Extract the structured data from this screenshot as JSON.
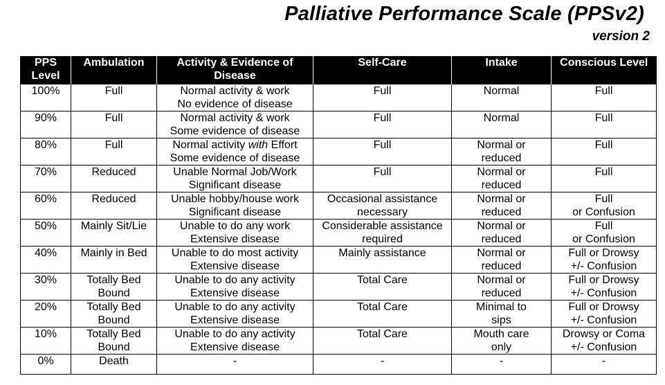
{
  "document": {
    "title": "Palliative Performance Scale (PPSv2)",
    "subtitle": "version 2"
  },
  "table": {
    "headers": [
      [
        "PPS",
        "Level"
      ],
      [
        "Ambulation"
      ],
      [
        "Activity & Evidence of",
        "Disease"
      ],
      [
        "Self-Care"
      ],
      [
        "Intake"
      ],
      [
        "Conscious Level"
      ]
    ],
    "rows": [
      {
        "level": "100%",
        "ambulation": [
          "Full"
        ],
        "activity": [
          "Normal activity & work",
          "No evidence of disease"
        ],
        "self_care": [
          "Full"
        ],
        "intake": [
          "Normal"
        ],
        "conscious": [
          "Full"
        ]
      },
      {
        "level": "90%",
        "ambulation": [
          "Full"
        ],
        "activity": [
          "Normal activity & work",
          "Some evidence of disease"
        ],
        "self_care": [
          "Full"
        ],
        "intake": [
          "Normal"
        ],
        "conscious": [
          "Full"
        ]
      },
      {
        "level": "80%",
        "ambulation": [
          "Full"
        ],
        "activity_parts": [
          "Normal activity ",
          "with",
          " Effort"
        ],
        "activity": [
          "",
          "Some evidence of disease"
        ],
        "self_care": [
          "Full"
        ],
        "intake": [
          "Normal or",
          "reduced"
        ],
        "conscious": [
          "Full"
        ]
      },
      {
        "level": "70%",
        "ambulation": [
          "Reduced"
        ],
        "activity": [
          "Unable Normal Job/Work",
          "Significant disease"
        ],
        "self_care": [
          "Full"
        ],
        "intake": [
          "Normal or",
          "reduced"
        ],
        "conscious": [
          "Full"
        ]
      },
      {
        "level": "60%",
        "ambulation": [
          "Reduced"
        ],
        "activity": [
          "Unable hobby/house work",
          "Significant disease"
        ],
        "self_care": [
          "Occasional assistance",
          "necessary"
        ],
        "intake": [
          "Normal or",
          "reduced"
        ],
        "conscious": [
          "Full",
          "or Confusion"
        ]
      },
      {
        "level": "50%",
        "ambulation": [
          "Mainly Sit/Lie"
        ],
        "activity": [
          "Unable to do any work",
          "Extensive disease"
        ],
        "self_care": [
          "Considerable assistance",
          "required"
        ],
        "intake": [
          "Normal or",
          "reduced"
        ],
        "conscious": [
          "Full",
          "or Confusion"
        ]
      },
      {
        "level": "40%",
        "ambulation": [
          "Mainly in Bed"
        ],
        "activity": [
          "Unable to do most activity",
          "Extensive disease"
        ],
        "self_care": [
          "Mainly assistance"
        ],
        "intake": [
          "Normal or",
          "reduced"
        ],
        "conscious": [
          "Full or Drowsy",
          "+/- Confusion"
        ]
      },
      {
        "level": "30%",
        "ambulation": [
          "Totally Bed",
          "Bound"
        ],
        "activity": [
          "Unable to do any activity",
          "Extensive disease"
        ],
        "self_care": [
          "Total Care"
        ],
        "intake": [
          "Normal or",
          "reduced"
        ],
        "conscious": [
          "Full or Drowsy",
          "+/- Confusion"
        ]
      },
      {
        "level": "20%",
        "ambulation": [
          "Totally Bed",
          "Bound"
        ],
        "activity": [
          "Unable to do any activity",
          "Extensive disease"
        ],
        "self_care": [
          "Total Care"
        ],
        "intake": [
          "Minimal to",
          "sips"
        ],
        "conscious": [
          "Full or Drowsy",
          "+/- Confusion"
        ]
      },
      {
        "level": "10%",
        "ambulation": [
          "Totally Bed",
          "Bound"
        ],
        "activity": [
          "Unable to do any activity",
          "Extensive disease"
        ],
        "self_care": [
          "Total Care"
        ],
        "intake": [
          "Mouth care",
          "only"
        ],
        "conscious": [
          "Drowsy or Coma",
          "+/- Confusion"
        ]
      },
      {
        "level": "0%",
        "ambulation": [
          "Death"
        ],
        "activity": [
          "-"
        ],
        "self_care": [
          "-"
        ],
        "intake": [
          "-"
        ],
        "conscious": [
          "-"
        ]
      }
    ]
  }
}
